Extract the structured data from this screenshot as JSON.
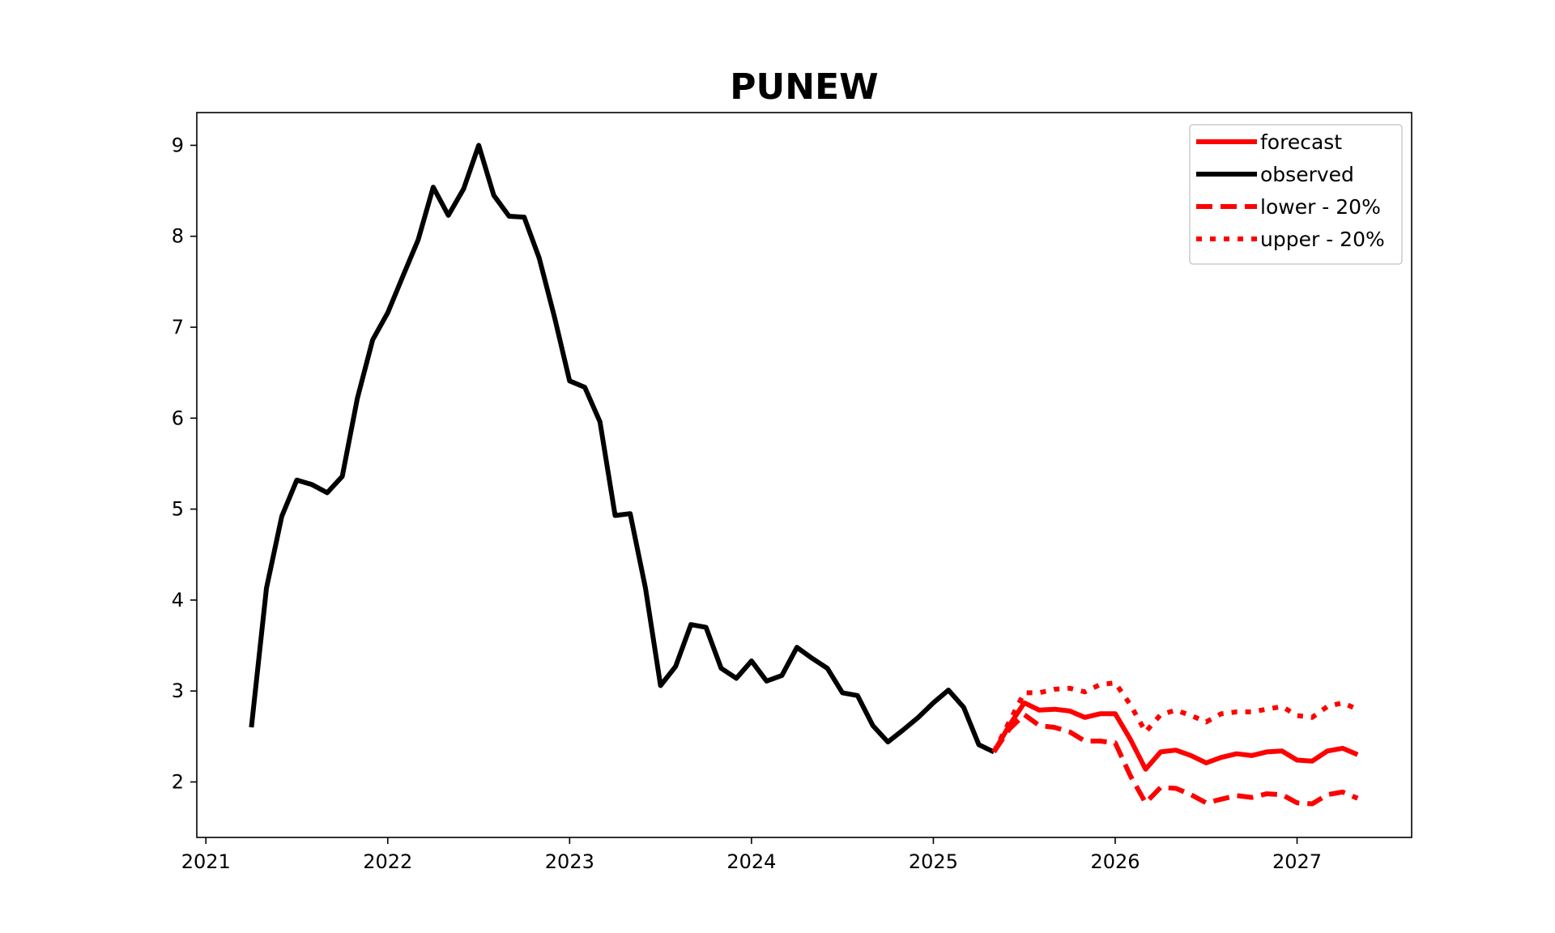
{
  "chart_data": {
    "type": "line",
    "title": "PUNEW",
    "xlabel": "",
    "ylabel": "",
    "xlim": [
      2020.95,
      2027.63
    ],
    "ylim": [
      1.39,
      9.36
    ],
    "x_ticks": [
      2021,
      2022,
      2023,
      2024,
      2025,
      2026,
      2027
    ],
    "y_ticks": [
      2,
      3,
      4,
      5,
      6,
      7,
      8,
      9
    ],
    "grid": false,
    "legend_position": "top-right",
    "series": [
      {
        "name": "forecast",
        "color": "#ff0000",
        "style": "solid",
        "x": [
          2025.333,
          2025.417,
          2025.5,
          2025.583,
          2025.667,
          2025.75,
          2025.833,
          2025.917,
          2026.0,
          2026.083,
          2026.167,
          2026.25,
          2026.333,
          2026.417,
          2026.5,
          2026.583,
          2026.667,
          2026.75,
          2026.833,
          2026.917,
          2027.0,
          2027.083,
          2027.167,
          2027.25,
          2027.333
        ],
        "y": [
          2.33,
          2.62,
          2.87,
          2.79,
          2.8,
          2.78,
          2.71,
          2.75,
          2.75,
          2.47,
          2.14,
          2.33,
          2.35,
          2.29,
          2.21,
          2.27,
          2.31,
          2.29,
          2.33,
          2.34,
          2.24,
          2.23,
          2.34,
          2.37,
          2.3
        ]
      },
      {
        "name": "observed",
        "color": "#000000",
        "style": "solid",
        "x": [
          2021.25,
          2021.333,
          2021.417,
          2021.5,
          2021.583,
          2021.667,
          2021.75,
          2021.833,
          2021.917,
          2022.0,
          2022.083,
          2022.167,
          2022.25,
          2022.333,
          2022.417,
          2022.5,
          2022.583,
          2022.667,
          2022.75,
          2022.833,
          2022.917,
          2023.0,
          2023.083,
          2023.167,
          2023.25,
          2023.333,
          2023.417,
          2023.5,
          2023.583,
          2023.667,
          2023.75,
          2023.833,
          2023.917,
          2024.0,
          2024.083,
          2024.167,
          2024.25,
          2024.333,
          2024.417,
          2024.5,
          2024.583,
          2024.667,
          2024.75,
          2024.833,
          2024.917,
          2025.0,
          2025.083,
          2025.167,
          2025.25,
          2025.333
        ],
        "y": [
          2.6,
          4.13,
          4.92,
          5.32,
          5.27,
          5.18,
          5.36,
          6.22,
          6.86,
          7.16,
          7.56,
          7.96,
          8.54,
          8.23,
          8.52,
          9.0,
          8.45,
          8.22,
          8.21,
          7.76,
          7.11,
          6.41,
          6.34,
          5.96,
          4.93,
          4.95,
          4.13,
          3.06,
          3.27,
          3.73,
          3.7,
          3.25,
          3.14,
          3.33,
          3.11,
          3.17,
          3.48,
          3.36,
          3.25,
          2.98,
          2.95,
          2.62,
          2.44,
          2.57,
          2.71,
          2.87,
          3.01,
          2.82,
          2.41,
          2.33
        ]
      },
      {
        "name": "lower - 20%",
        "color": "#ff0000",
        "style": "dashed",
        "x": [
          2025.333,
          2025.417,
          2025.5,
          2025.583,
          2025.667,
          2025.75,
          2025.833,
          2025.917,
          2026.0,
          2026.083,
          2026.167,
          2026.25,
          2026.333,
          2026.417,
          2026.5,
          2026.583,
          2026.667,
          2026.75,
          2026.833,
          2026.917,
          2027.0,
          2027.083,
          2027.167,
          2027.25,
          2027.333
        ],
        "y": [
          2.33,
          2.58,
          2.74,
          2.62,
          2.6,
          2.55,
          2.45,
          2.45,
          2.43,
          2.07,
          1.77,
          1.94,
          1.93,
          1.86,
          1.77,
          1.81,
          1.85,
          1.83,
          1.87,
          1.86,
          1.77,
          1.76,
          1.86,
          1.89,
          1.82
        ]
      },
      {
        "name": "upper - 20%",
        "color": "#ff0000",
        "style": "dotted",
        "x": [
          2025.333,
          2025.417,
          2025.5,
          2025.583,
          2025.667,
          2025.75,
          2025.833,
          2025.917,
          2026.0,
          2026.083,
          2026.167,
          2026.25,
          2026.333,
          2026.417,
          2026.5,
          2026.583,
          2026.667,
          2026.75,
          2026.833,
          2026.917,
          2027.0,
          2027.083,
          2027.167,
          2027.25,
          2027.333
        ],
        "y": [
          2.33,
          2.66,
          2.98,
          2.98,
          3.02,
          3.03,
          2.99,
          3.07,
          3.09,
          2.85,
          2.55,
          2.74,
          2.79,
          2.73,
          2.66,
          2.75,
          2.77,
          2.77,
          2.8,
          2.83,
          2.73,
          2.71,
          2.83,
          2.87,
          2.8
        ]
      }
    ]
  }
}
